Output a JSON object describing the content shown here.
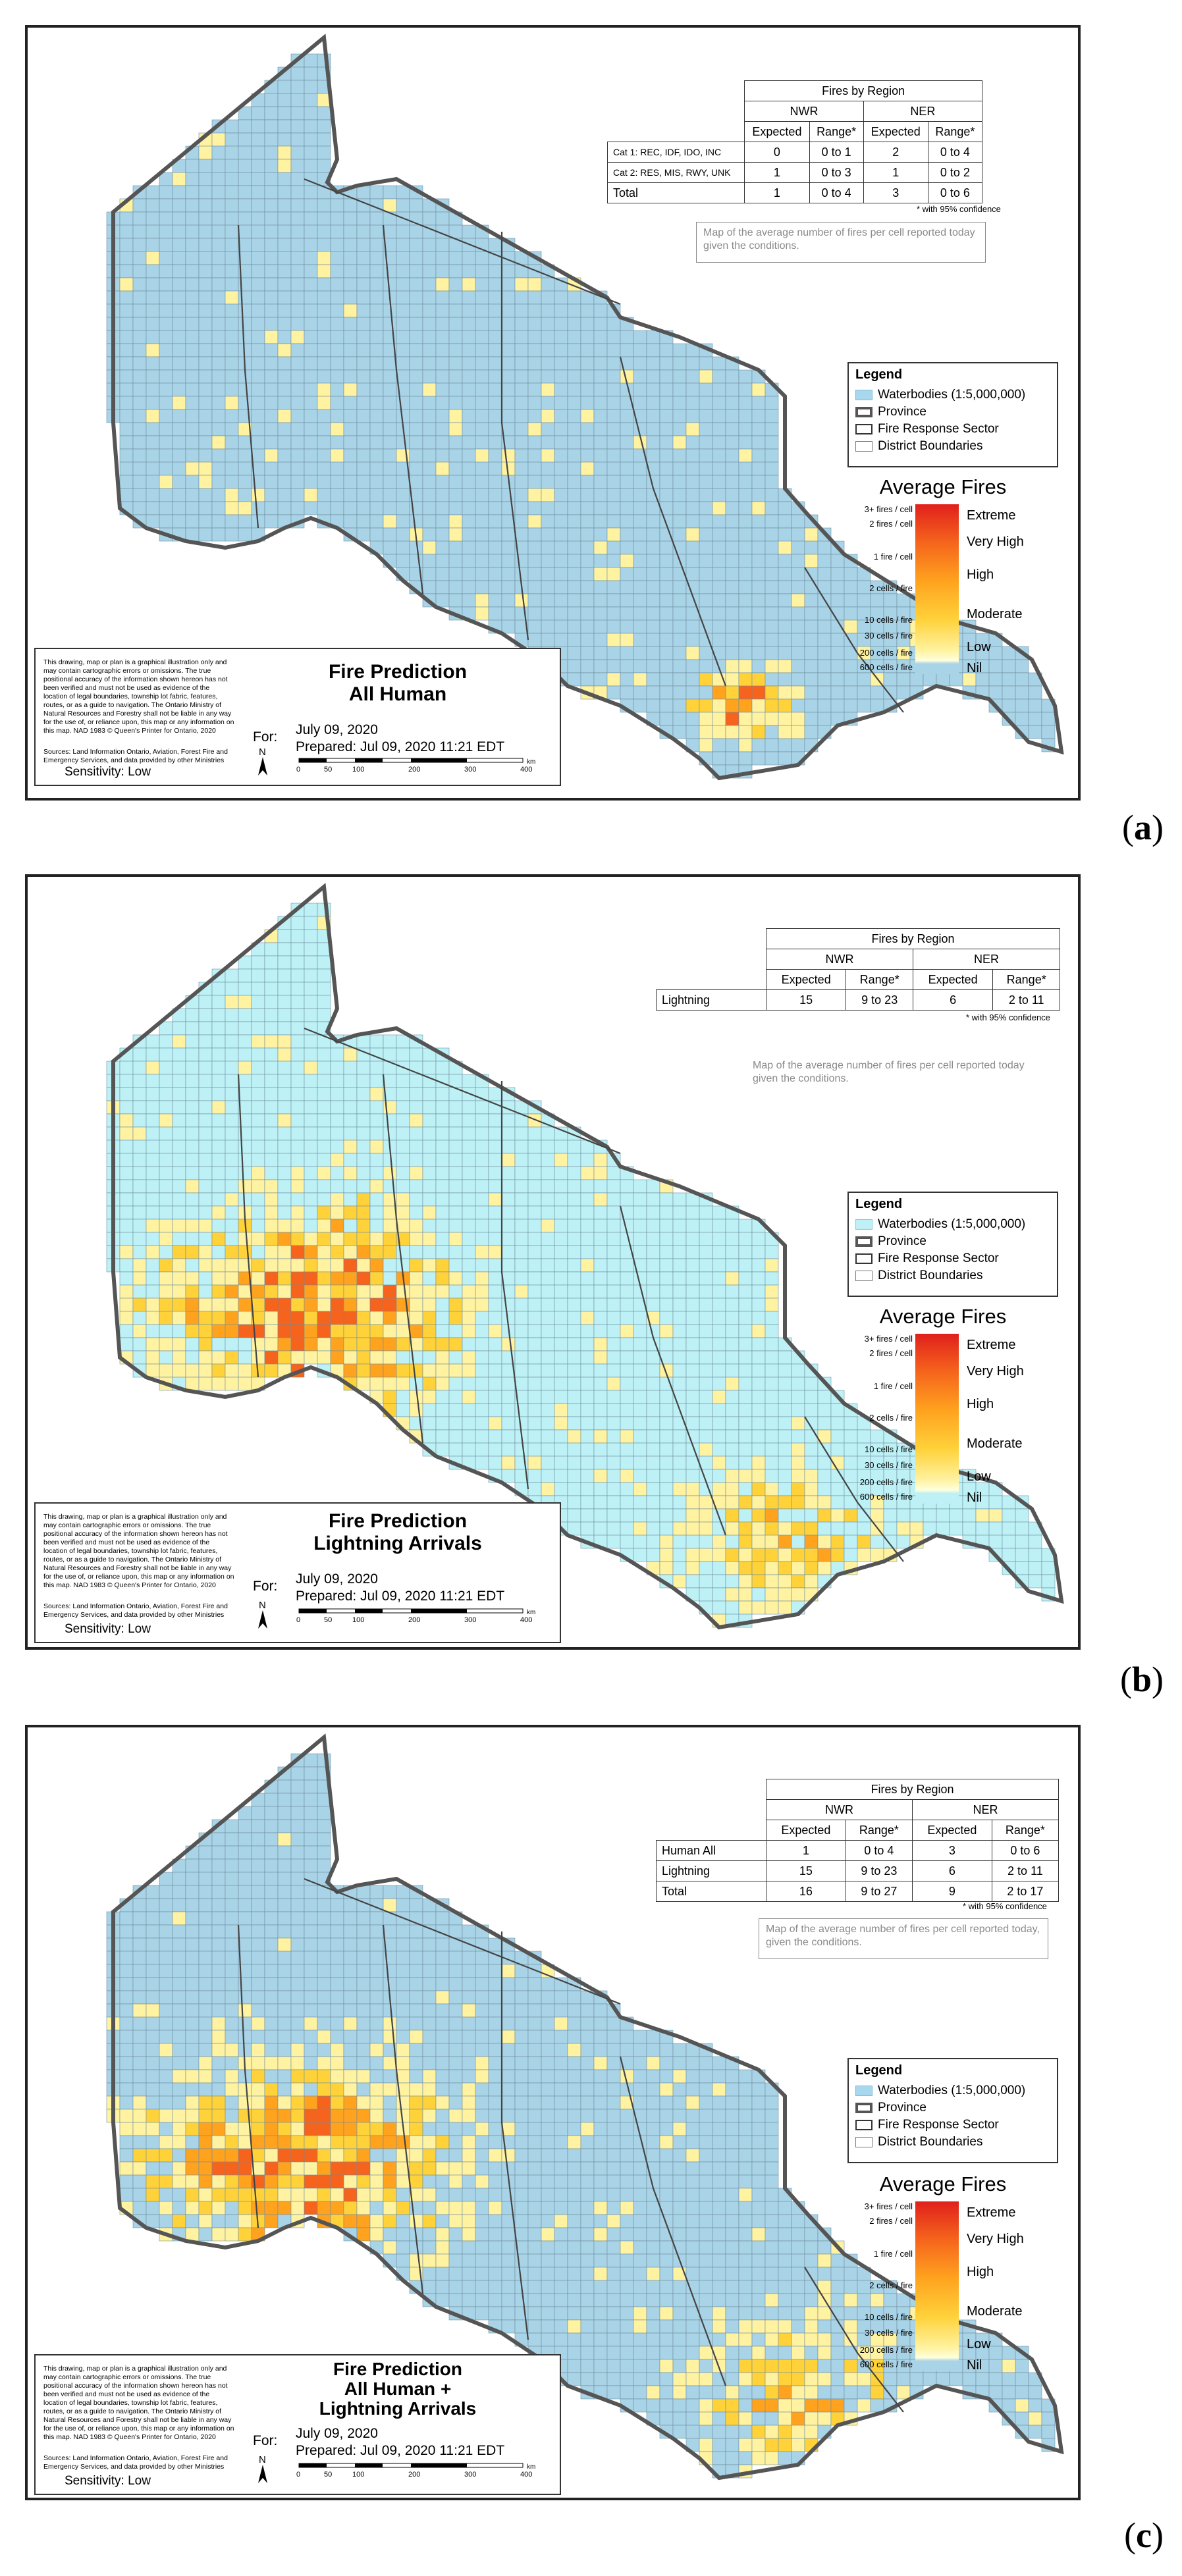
{
  "panels": [
    {
      "id": "a",
      "label": "a",
      "table": {
        "caption": "Fires by Region",
        "regions": [
          "NWR",
          "NER"
        ],
        "subheaders": [
          "Expected",
          "Range*",
          "Expected",
          "Range*"
        ],
        "rows": [
          {
            "name": "Cat 1: REC, IDF, IDO, INC",
            "values": [
              "0",
              "0 to 1",
              "2",
              "0 to 4"
            ]
          },
          {
            "name": "Cat 2: RES, MIS, RWY, UNK",
            "values": [
              "1",
              "0 to 3",
              "1",
              "0 to 2"
            ]
          },
          {
            "name": "Total",
            "values": [
              "1",
              "0 to 4",
              "3",
              "0 to 6"
            ]
          }
        ],
        "confidence_note": "* with 95% confidence"
      },
      "map_note": "Map of the average number of fires per cell reported today given the conditions.",
      "legend": {
        "title": "Legend",
        "items": [
          "Waterbodies (1:5,000,000)",
          "Province",
          "Fire Response Sector",
          "District Boundaries"
        ]
      },
      "scale": {
        "title": "Average Fires",
        "ticks": [
          "3+ fires / cell",
          "2 fires / cell",
          "1 fire / cell",
          "2 cells / fire",
          "10 cells / fire",
          "30 cells / fire",
          "200 cells / fire",
          "600 cells / fire"
        ],
        "classes": [
          "Extreme",
          "Very High",
          "High",
          "Moderate",
          "Low",
          "Nil"
        ]
      },
      "title_block": {
        "title_lines": [
          "Fire Prediction",
          "All Human"
        ],
        "for_label": "For:",
        "date": "July 09, 2020",
        "prepared": "Prepared: Jul 09, 2020 11:21 EDT",
        "sensitivity": "Sensitivity: Low",
        "disclaimer": "This drawing, map or plan is a graphical illustration only and may contain cartographic errors or omissions. The true positional accuracy of the information shown hereon has not been verified and must not be used as evidence of the location of legal boundaries, township lot fabric, features, routes, or as a guide to navigation. The Ontario Ministry of Natural Resources and Forestry shall not be liable in any way for the use of, or reliance upon, this map or any information on this map. NAD 1983 © Queen's Printer for Ontario, 2020",
        "sources": "Sources: Land Information Ontario, Aviation, Forest Fire and Emergency Services, and data provided by other Ministries",
        "north": "N",
        "scale_ticks": [
          "0",
          "50",
          "100",
          "200",
          "300",
          "400"
        ],
        "scale_unit": "km"
      }
    },
    {
      "id": "b",
      "label": "b",
      "table": {
        "caption": "Fires by Region",
        "regions": [
          "NWR",
          "NER"
        ],
        "subheaders": [
          "Expected",
          "Range*",
          "Expected",
          "Range*"
        ],
        "rows": [
          {
            "name": "Lightning",
            "values": [
              "15",
              "9 to 23",
              "6",
              "2 to 11"
            ]
          }
        ],
        "confidence_note": "* with 95% confidence"
      },
      "map_note": "Map of the average number of fires per cell reported today given the conditions.",
      "legend": {
        "title": "Legend",
        "items": [
          "Waterbodies (1:5,000,000)",
          "Province",
          "Fire Response Sector",
          "District Boundaries"
        ]
      },
      "scale": {
        "title": "Average Fires",
        "ticks": [
          "3+ fires / cell",
          "2 fires / cell",
          "1 fire / cell",
          "2 cells / fire",
          "10 cells / fire",
          "30 cells / fire",
          "200 cells / fire",
          "600 cells / fire"
        ],
        "classes": [
          "Extreme",
          "Very High",
          "High",
          "Moderate",
          "Low",
          "Nil"
        ]
      },
      "title_block": {
        "title_lines": [
          "Fire Prediction",
          "Lightning Arrivals"
        ],
        "for_label": "For:",
        "date": "July 09, 2020",
        "prepared": "Prepared: Jul 09, 2020 11:21 EDT",
        "sensitivity": "Sensitivity: Low",
        "disclaimer": "This drawing, map or plan is a graphical illustration only and may contain cartographic errors or omissions. The true positional accuracy of the information shown hereon has not been verified and must not be used as evidence of the location of legal boundaries, township lot fabric, features, routes, or as a guide to navigation. The Ontario Ministry of Natural Resources and Forestry shall not be liable in any way for the use of, or reliance upon, this map or any information on this map. NAD 1983 © Queen's Printer for Ontario, 2020",
        "sources": "Sources: Land Information Ontario, Aviation, Forest Fire and Emergency Services, and data provided by other Ministries",
        "north": "N",
        "scale_ticks": [
          "0",
          "50",
          "100",
          "200",
          "300",
          "400"
        ],
        "scale_unit": "km"
      }
    },
    {
      "id": "c",
      "label": "c",
      "table": {
        "caption": "Fires by Region",
        "regions": [
          "NWR",
          "NER"
        ],
        "subheaders": [
          "Expected",
          "Range*",
          "Expected",
          "Range*"
        ],
        "rows": [
          {
            "name": "Human All",
            "values": [
              "1",
              "0 to 4",
              "3",
              "0 to 6"
            ]
          },
          {
            "name": "Lightning",
            "values": [
              "15",
              "9 to 23",
              "6",
              "2 to 11"
            ]
          },
          {
            "name": "Total",
            "values": [
              "16",
              "9 to 27",
              "9",
              "2 to 17"
            ]
          }
        ],
        "confidence_note": "* with 95% confidence"
      },
      "map_note": "Map of the average number of fires per cell reported today, given the conditions.",
      "legend": {
        "title": "Legend",
        "items": [
          "Waterbodies (1:5,000,000)",
          "Province",
          "Fire Response Sector",
          "District Boundaries"
        ]
      },
      "scale": {
        "title": "Average Fires",
        "ticks": [
          "3+ fires / cell",
          "2 fires / cell",
          "1 fire / cell",
          "2 cells / fire",
          "10 cells / fire",
          "30 cells / fire",
          "200 cells / fire",
          "600 cells / fire"
        ],
        "classes": [
          "Extreme",
          "Very High",
          "High",
          "Moderate",
          "Low",
          "Nil"
        ]
      },
      "title_block": {
        "title_lines": [
          "Fire Prediction",
          "All Human +",
          "Lightning Arrivals"
        ],
        "for_label": "For:",
        "date": "July 09, 2020",
        "prepared": "Prepared: Jul 09, 2020 11:21 EDT",
        "sensitivity": "Sensitivity: Low",
        "disclaimer": "This drawing, map or plan is a graphical illustration only and may contain cartographic errors or omissions. The true positional accuracy of the information shown hereon has not been verified and must not be used as evidence of the location of legal boundaries, township lot fabric, features, routes, or as a guide to navigation. The Ontario Ministry of Natural Resources and Forestry shall not be liable in any way for the use of, or reliance upon, this map or any information on this map. NAD 1983 © Queen's Printer for Ontario, 2020",
        "sources": "Sources: Land Information Ontario, Aviation, Forest Fire and Emergency Services, and data provided by other Ministries",
        "north": "N",
        "scale_ticks": [
          "0",
          "50",
          "100",
          "200",
          "300",
          "400"
        ],
        "scale_unit": "km"
      }
    }
  ],
  "colors": {
    "nil_cell": "#a9d3e6",
    "nil_cell_lightning": "#bdf1f5",
    "low": "#fff2a0",
    "moderate": "#ffd23a",
    "high": "#ffa21e",
    "very_high": "#f5631c",
    "extreme": "#e0201c"
  }
}
